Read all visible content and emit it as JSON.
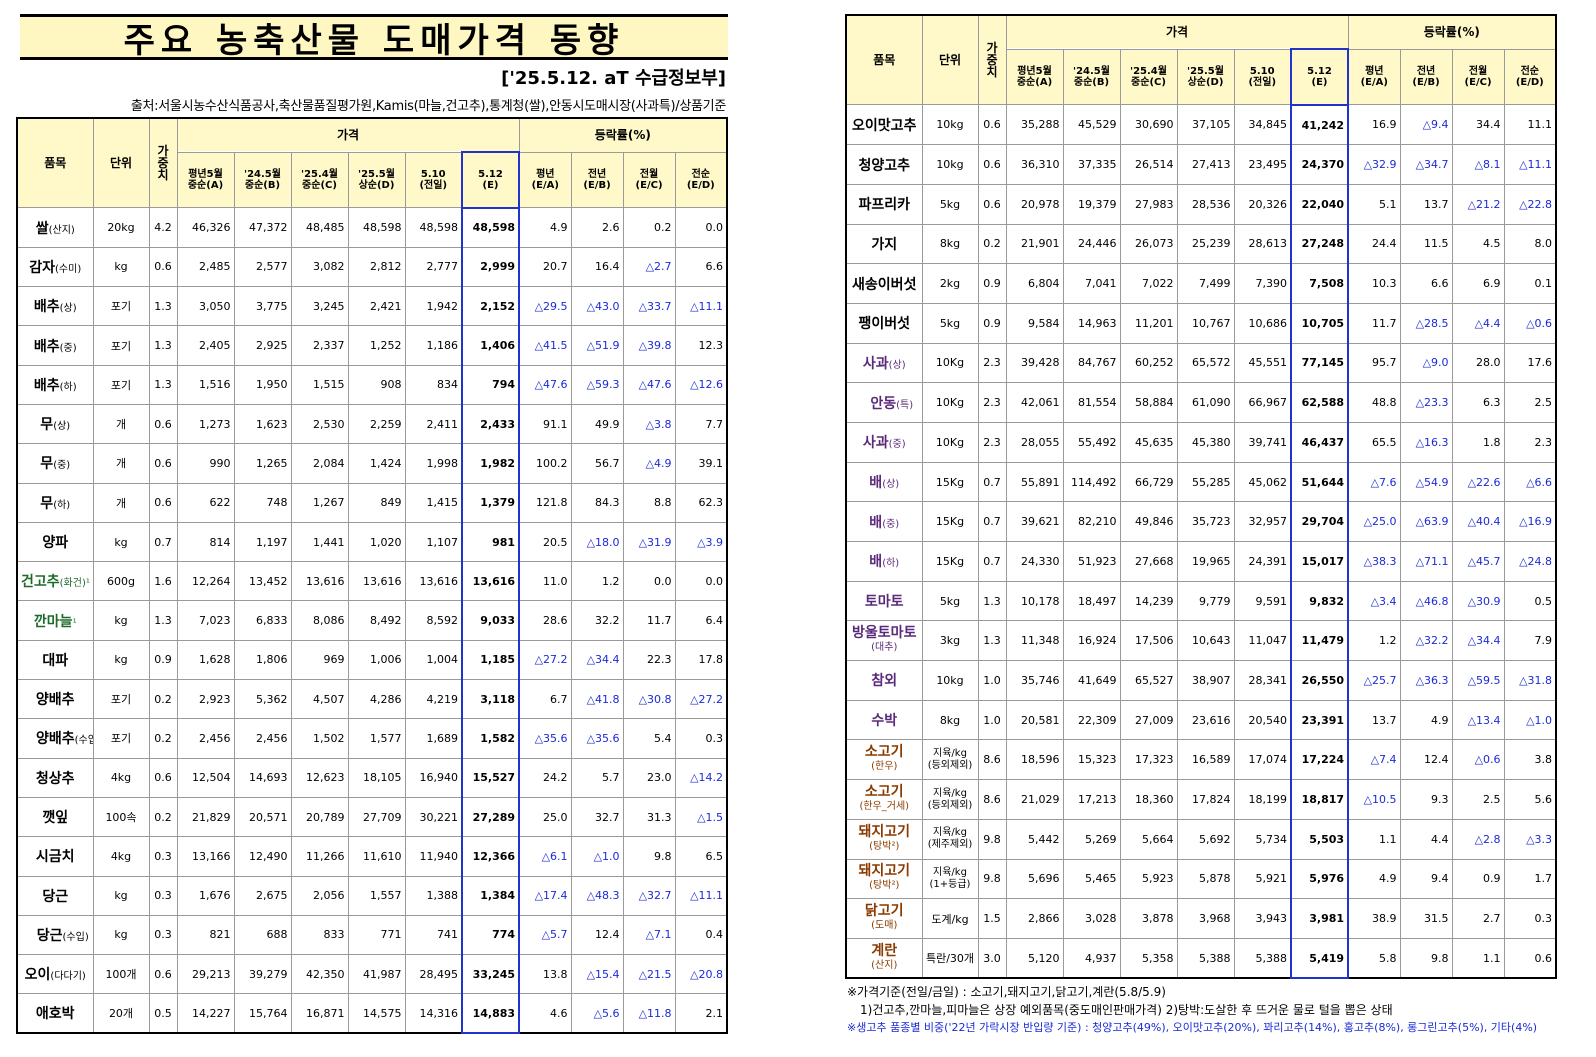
{
  "title": "주요 농축산물 도매가격 동향",
  "date_line": "['25.5.12. aT 수급정보부]",
  "source_line": "출처:서울시농수산식품공사,축산물품질평가원,Kamis(마늘,건고추),통계청(쌀),안동시도매시장(사과특)/상품기준",
  "headers": {
    "item": "품목",
    "unit": "단위",
    "weight": "가중치",
    "price": "가격",
    "change": "등락률(%)",
    "price_cols": [
      "평년5월\n중순(A)",
      "'24.5월\n중순(B)",
      "'25.4월\n중순(C)",
      "'25.5월\n상순(D)",
      "5.10\n(전일)",
      "5.12\n(E)"
    ],
    "change_cols": [
      "평년\n(E/A)",
      "전년\n(E/B)",
      "전월\n(E/C)",
      "전순\n(E/D)"
    ]
  },
  "left_rows": [
    {
      "name": "쌀",
      "sub": "(산지)",
      "unit": "20kg",
      "w": "4.2",
      "p": [
        "46,326",
        "47,372",
        "48,485",
        "48,598",
        "48,598",
        "48,598"
      ],
      "c": [
        "4.9",
        "2.6",
        "0.2",
        "0.0"
      ]
    },
    {
      "name": "감자",
      "sub": "(수미)",
      "unit": "kg",
      "w": "0.6",
      "p": [
        "2,485",
        "2,577",
        "3,082",
        "2,812",
        "2,777",
        "2,999"
      ],
      "c": [
        "20.7",
        "16.4",
        "△2.7",
        "6.6"
      ]
    },
    {
      "name": "배추",
      "sub": "(상)",
      "unit": "포기",
      "w": "1.3",
      "p": [
        "3,050",
        "3,775",
        "3,245",
        "2,421",
        "1,942",
        "2,152"
      ],
      "c": [
        "△29.5",
        "△43.0",
        "△33.7",
        "△11.1"
      ]
    },
    {
      "name": "배추",
      "sub": "(중)",
      "unit": "포기",
      "w": "1.3",
      "p": [
        "2,405",
        "2,925",
        "2,337",
        "1,252",
        "1,186",
        "1,406"
      ],
      "c": [
        "△41.5",
        "△51.9",
        "△39.8",
        "12.3"
      ]
    },
    {
      "name": "배추",
      "sub": "(하)",
      "unit": "포기",
      "w": "1.3",
      "p": [
        "1,516",
        "1,950",
        "1,515",
        "908",
        "834",
        "794"
      ],
      "c": [
        "△47.6",
        "△59.3",
        "△47.6",
        "△12.6"
      ]
    },
    {
      "name": "무",
      "sub": "(상)",
      "unit": "개",
      "w": "0.6",
      "p": [
        "1,273",
        "1,623",
        "2,530",
        "2,259",
        "2,411",
        "2,433"
      ],
      "c": [
        "91.1",
        "49.9",
        "△3.8",
        "7.7"
      ]
    },
    {
      "name": "무",
      "sub": "(중)",
      "unit": "개",
      "w": "0.6",
      "p": [
        "990",
        "1,265",
        "2,084",
        "1,424",
        "1,998",
        "1,982"
      ],
      "c": [
        "100.2",
        "56.7",
        "△4.9",
        "39.1"
      ]
    },
    {
      "name": "무",
      "sub": "(하)",
      "unit": "개",
      "w": "0.6",
      "p": [
        "622",
        "748",
        "1,267",
        "849",
        "1,415",
        "1,379"
      ],
      "c": [
        "121.8",
        "84.3",
        "8.8",
        "62.3"
      ]
    },
    {
      "name": "양파",
      "sub": "",
      "unit": "kg",
      "w": "0.7",
      "p": [
        "814",
        "1,197",
        "1,441",
        "1,020",
        "1,107",
        "981"
      ],
      "c": [
        "20.5",
        "△18.0",
        "△31.9",
        "△3.9"
      ]
    },
    {
      "name": "건고추",
      "sub": "(화건)¹",
      "unit": "600g",
      "w": "1.6",
      "p": [
        "12,264",
        "13,452",
        "13,616",
        "13,616",
        "13,616",
        "13,616"
      ],
      "c": [
        "11.0",
        "1.2",
        "0.0",
        "0.0"
      ],
      "green": true
    },
    {
      "name": "깐마늘",
      "sub": "¹",
      "unit": "kg",
      "w": "1.3",
      "p": [
        "7,023",
        "6,833",
        "8,086",
        "8,492",
        "8,592",
        "9,033"
      ],
      "c": [
        "28.6",
        "32.2",
        "11.7",
        "6.4"
      ],
      "green": true
    },
    {
      "name": "대파",
      "sub": "",
      "unit": "kg",
      "w": "0.9",
      "p": [
        "1,628",
        "1,806",
        "969",
        "1,006",
        "1,004",
        "1,185"
      ],
      "c": [
        "△27.2",
        "△34.4",
        "22.3",
        "17.8"
      ]
    },
    {
      "name": "양배추",
      "sub": "",
      "unit": "포기",
      "w": "0.2",
      "p": [
        "2,923",
        "5,362",
        "4,507",
        "4,286",
        "4,219",
        "3,118"
      ],
      "c": [
        "6.7",
        "△41.8",
        "△30.8",
        "△27.2"
      ]
    },
    {
      "name": "양배추",
      "sub": "(수입)",
      "unit": "포기",
      "w": "0.2",
      "p": [
        "2,456",
        "2,456",
        "1,502",
        "1,577",
        "1,689",
        "1,582"
      ],
      "c": [
        "△35.6",
        "△35.6",
        "5.4",
        "0.3"
      ],
      "indent": true
    },
    {
      "name": "청상추",
      "sub": "",
      "unit": "4kg",
      "w": "0.6",
      "p": [
        "12,504",
        "14,693",
        "12,623",
        "18,105",
        "16,940",
        "15,527"
      ],
      "c": [
        "24.2",
        "5.7",
        "23.0",
        "△14.2"
      ]
    },
    {
      "name": "깻잎",
      "sub": "",
      "unit": "100속",
      "w": "0.2",
      "p": [
        "21,829",
        "20,571",
        "20,789",
        "27,709",
        "30,221",
        "27,289"
      ],
      "c": [
        "25.0",
        "32.7",
        "31.3",
        "△1.5"
      ]
    },
    {
      "name": "시금치",
      "sub": "",
      "unit": "4kg",
      "w": "0.3",
      "p": [
        "13,166",
        "12,490",
        "11,266",
        "11,610",
        "11,940",
        "12,366"
      ],
      "c": [
        "△6.1",
        "△1.0",
        "9.8",
        "6.5"
      ]
    },
    {
      "name": "당근",
      "sub": "",
      "unit": "kg",
      "w": "0.3",
      "p": [
        "1,676",
        "2,675",
        "2,056",
        "1,557",
        "1,388",
        "1,384"
      ],
      "c": [
        "△17.4",
        "△48.3",
        "△32.7",
        "△11.1"
      ]
    },
    {
      "name": "당근",
      "sub": "(수입)",
      "unit": "kg",
      "w": "0.3",
      "p": [
        "821",
        "688",
        "833",
        "771",
        "741",
        "774"
      ],
      "c": [
        "△5.7",
        "12.4",
        "△7.1",
        "0.4"
      ],
      "indent": true
    },
    {
      "name": "오이",
      "sub": "(다다기)",
      "unit": "100개",
      "w": "0.6",
      "p": [
        "29,213",
        "39,279",
        "42,350",
        "41,987",
        "28,495",
        "33,245"
      ],
      "c": [
        "13.8",
        "△15.4",
        "△21.5",
        "△20.8"
      ]
    },
    {
      "name": "애호박",
      "sub": "",
      "unit": "20개",
      "w": "0.5",
      "p": [
        "14,227",
        "15,764",
        "16,871",
        "14,575",
        "14,316",
        "14,883"
      ],
      "c": [
        "4.6",
        "△5.6",
        "△11.8",
        "2.1"
      ]
    }
  ],
  "right_rows": [
    {
      "name": "오이맛고추",
      "sub": "",
      "unit": "10kg",
      "w": "0.6",
      "p": [
        "35,288",
        "45,529",
        "30,690",
        "37,105",
        "34,845",
        "41,242"
      ],
      "c": [
        "16.9",
        "△9.4",
        "34.4",
        "11.1"
      ]
    },
    {
      "name": "청양고추",
      "sub": "",
      "unit": "10kg",
      "w": "0.6",
      "p": [
        "36,310",
        "37,335",
        "26,514",
        "27,413",
        "23,495",
        "24,370"
      ],
      "c": [
        "△32.9",
        "△34.7",
        "△8.1",
        "△11.1"
      ]
    },
    {
      "name": "파프리카",
      "sub": "",
      "unit": "5kg",
      "w": "0.6",
      "p": [
        "20,978",
        "19,379",
        "27,983",
        "28,536",
        "20,326",
        "22,040"
      ],
      "c": [
        "5.1",
        "13.7",
        "△21.2",
        "△22.8"
      ]
    },
    {
      "name": "가지",
      "sub": "",
      "unit": "8kg",
      "w": "0.2",
      "p": [
        "21,901",
        "24,446",
        "26,073",
        "25,239",
        "28,613",
        "27,248"
      ],
      "c": [
        "24.4",
        "11.5",
        "4.5",
        "8.0"
      ]
    },
    {
      "name": "새송이버섯",
      "sub": "",
      "unit": "2kg",
      "w": "0.9",
      "p": [
        "6,804",
        "7,041",
        "7,022",
        "7,499",
        "7,390",
        "7,508"
      ],
      "c": [
        "10.3",
        "6.6",
        "6.9",
        "0.1"
      ]
    },
    {
      "name": "팽이버섯",
      "sub": "",
      "unit": "5kg",
      "w": "0.9",
      "p": [
        "9,584",
        "14,963",
        "11,201",
        "10,767",
        "10,686",
        "10,705"
      ],
      "c": [
        "11.7",
        "△28.5",
        "△4.4",
        "△0.6"
      ]
    },
    {
      "name": "사과",
      "sub": "(상)",
      "unit": "10Kg",
      "w": "2.3",
      "p": [
        "39,428",
        "84,767",
        "60,252",
        "65,572",
        "45,551",
        "77,145"
      ],
      "c": [
        "95.7",
        "△9.0",
        "28.0",
        "17.6"
      ],
      "purple": true
    },
    {
      "name": "안동",
      "sub": "(특)",
      "unit": "10Kg",
      "w": "2.3",
      "p": [
        "42,061",
        "81,554",
        "58,884",
        "61,090",
        "66,967",
        "62,588"
      ],
      "c": [
        "48.8",
        "△23.3",
        "6.3",
        "2.5"
      ],
      "purple": true,
      "indent": true
    },
    {
      "name": "사과",
      "sub": "(중)",
      "unit": "10Kg",
      "w": "2.3",
      "p": [
        "28,055",
        "55,492",
        "45,635",
        "45,380",
        "39,741",
        "46,437"
      ],
      "c": [
        "65.5",
        "△16.3",
        "1.8",
        "2.3"
      ],
      "purple": true
    },
    {
      "name": "배",
      "sub": "(상)",
      "unit": "15Kg",
      "w": "0.7",
      "p": [
        "55,891",
        "114,492",
        "66,729",
        "55,285",
        "45,062",
        "51,644"
      ],
      "c": [
        "△7.6",
        "△54.9",
        "△22.6",
        "△6.6"
      ],
      "purple": true
    },
    {
      "name": "배",
      "sub": "(중)",
      "unit": "15Kg",
      "w": "0.7",
      "p": [
        "39,621",
        "82,210",
        "49,846",
        "35,723",
        "32,957",
        "29,704"
      ],
      "c": [
        "△25.0",
        "△63.9",
        "△40.4",
        "△16.9"
      ],
      "purple": true
    },
    {
      "name": "배",
      "sub": "(하)",
      "unit": "15Kg",
      "w": "0.7",
      "p": [
        "24,330",
        "51,923",
        "27,668",
        "19,965",
        "24,391",
        "15,017"
      ],
      "c": [
        "△38.3",
        "△71.1",
        "△45.7",
        "△24.8"
      ],
      "purple": true
    },
    {
      "name": "토마토",
      "sub": "",
      "unit": "5kg",
      "w": "1.3",
      "p": [
        "10,178",
        "18,497",
        "14,239",
        "9,779",
        "9,591",
        "9,832"
      ],
      "c": [
        "△3.4",
        "△46.8",
        "△30.9",
        "0.5"
      ],
      "purple": true
    },
    {
      "name": "방울토마토",
      "sub": "(대추)",
      "unit": "3kg",
      "w": "1.3",
      "p": [
        "11,348",
        "16,924",
        "17,506",
        "10,643",
        "11,047",
        "11,479"
      ],
      "c": [
        "1.2",
        "△32.2",
        "△34.4",
        "7.9"
      ],
      "purple": true,
      "stack": true
    },
    {
      "name": "참외",
      "sub": "",
      "unit": "10kg",
      "w": "1.0",
      "p": [
        "35,746",
        "41,649",
        "65,527",
        "38,907",
        "28,341",
        "26,550"
      ],
      "c": [
        "△25.7",
        "△36.3",
        "△59.5",
        "△31.8"
      ],
      "purple": true
    },
    {
      "name": "수박",
      "sub": "",
      "unit": "8kg",
      "w": "1.0",
      "p": [
        "20,581",
        "22,309",
        "27,009",
        "23,616",
        "20,540",
        "23,391"
      ],
      "c": [
        "13.7",
        "4.9",
        "△13.4",
        "△1.0"
      ],
      "purple": true
    },
    {
      "name": "소고기",
      "sub": "(한우)",
      "unit": "지육/kg\n(등외제외)",
      "w": "8.6",
      "p": [
        "18,596",
        "15,323",
        "17,323",
        "16,589",
        "17,074",
        "17,224"
      ],
      "c": [
        "△7.4",
        "12.4",
        "△0.6",
        "3.8"
      ],
      "brown": true,
      "stack": true
    },
    {
      "name": "소고기",
      "sub": "(한우_거세)",
      "unit": "지육/kg\n(등외제외)",
      "w": "8.6",
      "p": [
        "21,029",
        "17,213",
        "18,360",
        "17,824",
        "18,199",
        "18,817"
      ],
      "c": [
        "△10.5",
        "9.3",
        "2.5",
        "5.6"
      ],
      "brown": true,
      "stack": true
    },
    {
      "name": "돼지고기",
      "sub": "(탕박²)",
      "unit": "지육/kg\n(제주제외)",
      "w": "9.8",
      "p": [
        "5,442",
        "5,269",
        "5,664",
        "5,692",
        "5,734",
        "5,503"
      ],
      "c": [
        "1.1",
        "4.4",
        "△2.8",
        "△3.3"
      ],
      "brown": true,
      "stack": true
    },
    {
      "name": "돼지고기",
      "sub": "(탕박²)",
      "unit": "지육/kg\n(1+등급)",
      "w": "9.8",
      "p": [
        "5,696",
        "5,465",
        "5,923",
        "5,878",
        "5,921",
        "5,976"
      ],
      "c": [
        "4.9",
        "9.4",
        "0.9",
        "1.7"
      ],
      "brown": true,
      "stack": true
    },
    {
      "name": "닭고기",
      "sub": "(도매)",
      "unit": "도계/kg",
      "w": "1.5",
      "p": [
        "2,866",
        "3,028",
        "3,878",
        "3,968",
        "3,943",
        "3,981"
      ],
      "c": [
        "38.9",
        "31.5",
        "2.7",
        "0.3"
      ],
      "brown": true,
      "stack": true
    },
    {
      "name": "계란",
      "sub": "(산지)",
      "unit": "특란/30개",
      "w": "3.0",
      "p": [
        "5,120",
        "4,937",
        "5,358",
        "5,388",
        "5,388",
        "5,419"
      ],
      "c": [
        "5.8",
        "9.8",
        "1.1",
        "0.6"
      ],
      "brown": true,
      "stack": true
    }
  ],
  "notes": [
    "※가격기준(전일/금일) : 소고기,돼지고기,닭고기,계란(5.8/5.9)",
    "1)건고추,깐마늘,피마늘은 상장 예외품목(중도매인판매가격)   2)탕박:도살한 후 뜨거운 물로 털을 뽑은 상태",
    "※생고추 품종별 비중('22년 가락시장 반입량 기준) : 청양고추(49%), 오이맛고추(20%), 꽈리고추(14%), 홍고추(8%), 롱그린고추(5%), 기타(4%)"
  ],
  "colors": {
    "header_bg": "#fff8c8",
    "title_bg": "#fff7c2",
    "negative": "#1a2ad6",
    "highlight_border": "#2233cc",
    "green_item": "#1d6b2a",
    "purple_item": "#5a2a7a",
    "brown_item": "#8a3a00"
  }
}
